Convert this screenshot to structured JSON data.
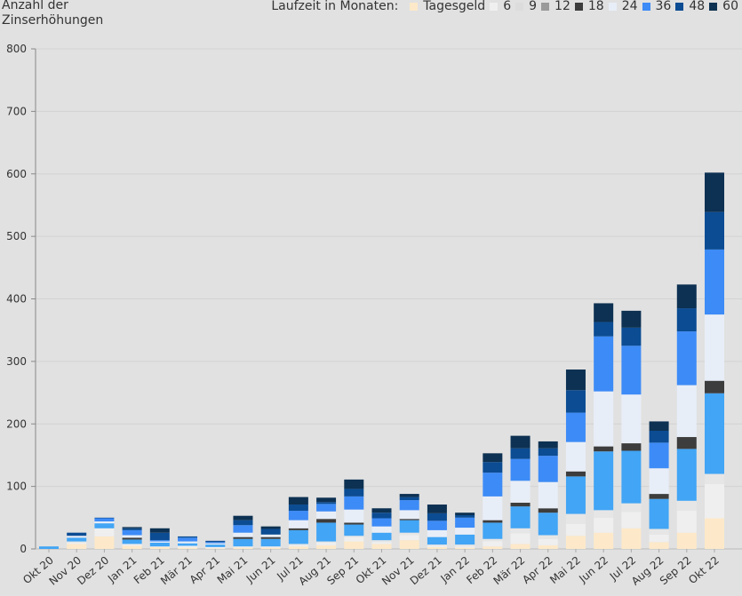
{
  "chart_data": {
    "type": "bar",
    "stacked": true,
    "ylabel": "Anzahl der Zinserhöhungen",
    "ylim": [
      0,
      800
    ],
    "yticks": [
      "0",
      "100",
      "200",
      "300",
      "400",
      "500",
      "600",
      "700",
      "800"
    ],
    "grid": true,
    "legend_title": "Laufzeit in Monaten:",
    "legend_position": "top-right",
    "categories": [
      "Okt 20",
      "Nov 20",
      "Dez 20",
      "Jan 21",
      "Feb 21",
      "Mär 21",
      "Apr 21",
      "Mai 21",
      "Jun 21",
      "Jul 21",
      "Aug 21",
      "Sep 21",
      "Okt 21",
      "Nov 21",
      "Dez 21",
      "Jan 22",
      "Feb 22",
      "Mär 22",
      "Apr 22",
      "Mai 22",
      "Jun 22",
      "Jul 22",
      "Aug 22",
      "Sep 22",
      "Okt 22"
    ],
    "series": [
      {
        "name": "Tagesgeld",
        "color": "#fde9c9",
        "legend_color": "#fde9c9",
        "values": [
          0,
          8,
          20,
          5,
          3,
          2,
          1,
          2,
          2,
          4,
          6,
          12,
          8,
          14,
          3,
          2,
          4,
          8,
          6,
          21,
          26,
          33,
          11,
          26,
          49
        ]
      },
      {
        "name": "6",
        "color": "#efefef",
        "legend_color": "#efefef",
        "values": [
          0,
          2,
          13,
          3,
          1,
          3,
          2,
          2,
          2,
          2,
          4,
          7,
          3,
          8,
          2,
          2,
          8,
          17,
          10,
          19,
          24,
          26,
          12,
          35,
          55
        ]
      },
      {
        "name": "9",
        "color": "#e6e6e6",
        "legend_color": "#dcdcdc",
        "values": [
          0,
          2,
          0,
          0,
          0,
          0,
          0,
          0,
          0,
          2,
          2,
          2,
          3,
          4,
          2,
          3,
          4,
          8,
          6,
          16,
          12,
          14,
          9,
          16,
          16
        ]
      },
      {
        "name": "12",
        "color": "#42a5f5",
        "legend_color": "#9a9a9a",
        "values": [
          4,
          6,
          8,
          7,
          6,
          4,
          4,
          12,
          12,
          22,
          30,
          18,
          12,
          20,
          12,
          16,
          26,
          35,
          36,
          60,
          94,
          84,
          48,
          83,
          129
        ]
      },
      {
        "name": "18",
        "color": "#3d3d3d",
        "legend_color": "#3d3d3d",
        "values": [
          0,
          0,
          0,
          3,
          0,
          0,
          0,
          3,
          3,
          3,
          6,
          3,
          0,
          2,
          0,
          0,
          4,
          6,
          7,
          8,
          8,
          12,
          8,
          19,
          20
        ]
      },
      {
        "name": "24",
        "color": "#e8eef8",
        "legend_color": "#e8eef8",
        "values": [
          0,
          3,
          3,
          4,
          2,
          3,
          2,
          7,
          4,
          13,
          12,
          21,
          10,
          14,
          11,
          11,
          38,
          35,
          42,
          47,
          88,
          78,
          41,
          83,
          106
        ]
      },
      {
        "name": "36",
        "color": "#3d8bf7",
        "legend_color": "#3d8bf7",
        "values": [
          0,
          0,
          5,
          8,
          2,
          6,
          2,
          12,
          0,
          15,
          12,
          21,
          13,
          16,
          15,
          16,
          38,
          35,
          42,
          47,
          88,
          78,
          41,
          86,
          104
        ]
      },
      {
        "name": "48",
        "color": "#0b4c93",
        "legend_color": "#0b4c93",
        "values": [
          0,
          5,
          1,
          3,
          12,
          2,
          2,
          8,
          9,
          10,
          3,
          12,
          9,
          5,
          12,
          4,
          17,
          17,
          12,
          36,
          23,
          29,
          19,
          37,
          60
        ]
      },
      {
        "name": "60",
        "color": "#0d3152",
        "legend_color": "#0d3152",
        "values": [
          0,
          0,
          0,
          2,
          7,
          0,
          0,
          7,
          4,
          12,
          7,
          15,
          7,
          5,
          14,
          4,
          14,
          20,
          11,
          33,
          30,
          27,
          15,
          38,
          63
        ]
      }
    ]
  }
}
